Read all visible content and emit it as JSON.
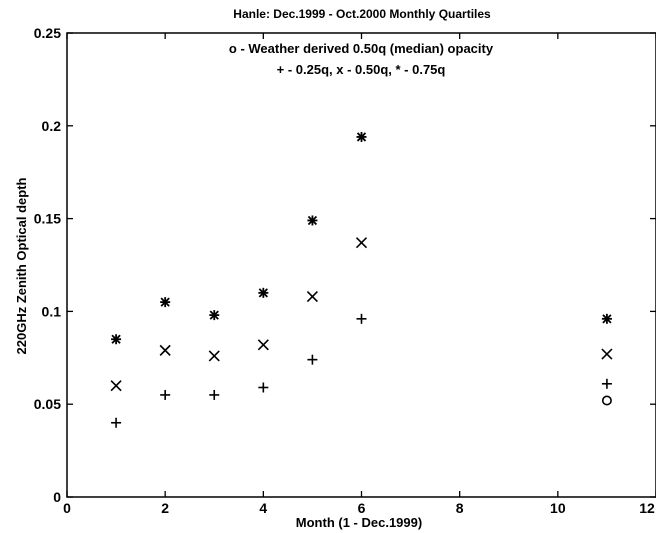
{
  "chart_data": {
    "type": "scatter",
    "title": "Hanle: Dec.1999 - Oct.2000 Monthly Quartiles",
    "xlabel": "Month (1 - Dec.1999)",
    "ylabel": "220GHz Zenith Optical depth",
    "xlim": [
      0,
      12
    ],
    "ylim": [
      0,
      0.25
    ],
    "x_ticks": [
      "0",
      "2",
      "4",
      "6",
      "8",
      "10",
      "12"
    ],
    "y_ticks": [
      "0",
      "0.05",
      "0.1",
      "0.15",
      "0.2",
      "0.25"
    ],
    "grid": false,
    "annotations": [
      "o - Weather derived 0.50q (median) opacity",
      "+ - 0.25q, x - 0.50q, * - 0.75q"
    ],
    "series": [
      {
        "marker": "plus",
        "x": [
          1,
          2,
          3,
          4,
          5,
          6,
          11
        ],
        "y": [
          0.04,
          0.055,
          0.055,
          0.059,
          0.074,
          0.096,
          0.061
        ]
      },
      {
        "marker": "x",
        "x": [
          1,
          2,
          3,
          4,
          5,
          6,
          11
        ],
        "y": [
          0.06,
          0.079,
          0.076,
          0.082,
          0.108,
          0.137,
          0.077
        ]
      },
      {
        "marker": "star",
        "x": [
          1,
          2,
          3,
          4,
          5,
          6,
          11
        ],
        "y": [
          0.085,
          0.105,
          0.098,
          0.11,
          0.149,
          0.194,
          0.096
        ]
      },
      {
        "marker": "circle",
        "x": [
          11
        ],
        "y": [
          0.052
        ]
      }
    ]
  }
}
